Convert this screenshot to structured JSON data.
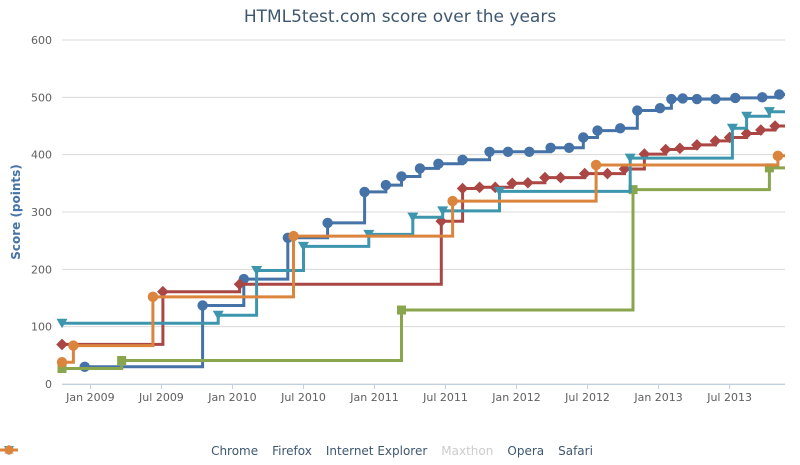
{
  "chart": {
    "title": "HTML5test.com score over the years",
    "y_axis_title": "Score (points)"
  },
  "chart_data": {
    "type": "line",
    "step": "after",
    "title": "HTML5test.com score over the years",
    "xlabel": "",
    "ylabel": "Score (points)",
    "x_range": [
      2008.8,
      2013.89
    ],
    "y_range": [
      0,
      600
    ],
    "grid": true,
    "legend_position": "bottom",
    "axis_colors": {
      "grid": "#D8D8D8",
      "axis_line": "#C0D0E0",
      "tick_text": "#606060"
    },
    "x_ticks": [
      {
        "label": "Jan 2009",
        "year": 2009.0
      },
      {
        "label": "Jul 2009",
        "year": 2009.5
      },
      {
        "label": "Jan 2010",
        "year": 2010.0
      },
      {
        "label": "Jul 2010",
        "year": 2010.5
      },
      {
        "label": "Jan 2011",
        "year": 2011.0
      },
      {
        "label": "Jul 2011",
        "year": 2011.5
      },
      {
        "label": "Jan 2012",
        "year": 2012.0
      },
      {
        "label": "Jul 2012",
        "year": 2012.5
      },
      {
        "label": "Jan 2013",
        "year": 2013.0
      },
      {
        "label": "Jul 2013",
        "year": 2013.5
      }
    ],
    "y_ticks": [
      {
        "label": "0",
        "value": 0
      },
      {
        "label": "100",
        "value": 100
      },
      {
        "label": "200",
        "value": 200
      },
      {
        "label": "300",
        "value": 300
      },
      {
        "label": "400",
        "value": 400
      },
      {
        "label": "500",
        "value": 500
      },
      {
        "label": "600",
        "value": 600
      }
    ],
    "series": [
      {
        "id": "chrome",
        "name": "Chrome",
        "color": "#4572A7",
        "marker": "circle",
        "visible": true,
        "points": [
          [
            2008.96,
            30
          ],
          [
            2009.79,
            137
          ],
          [
            2010.08,
            183
          ],
          [
            2010.39,
            255
          ],
          [
            2010.67,
            281
          ],
          [
            2010.93,
            335
          ],
          [
            2011.08,
            347
          ],
          [
            2011.19,
            362
          ],
          [
            2011.32,
            376
          ],
          [
            2011.45,
            384
          ],
          [
            2011.62,
            391
          ],
          [
            2011.81,
            405
          ],
          [
            2011.94,
            405
          ],
          [
            2012.09,
            405
          ],
          [
            2012.24,
            412
          ],
          [
            2012.37,
            412
          ],
          [
            2012.47,
            430
          ],
          [
            2012.57,
            442
          ],
          [
            2012.73,
            446
          ],
          [
            2012.85,
            477
          ],
          [
            2013.01,
            481
          ],
          [
            2013.09,
            497
          ],
          [
            2013.17,
            498
          ],
          [
            2013.27,
            497
          ],
          [
            2013.4,
            497
          ],
          [
            2013.54,
            499
          ],
          [
            2013.73,
            500
          ],
          [
            2013.85,
            505
          ]
        ]
      },
      {
        "id": "firefox",
        "name": "Firefox",
        "color": "#AA4643",
        "marker": "diamond",
        "visible": true,
        "points": [
          [
            2008.8,
            69
          ],
          [
            2009.51,
            161
          ],
          [
            2010.05,
            174
          ],
          [
            2011.47,
            284
          ],
          [
            2011.62,
            341
          ],
          [
            2011.74,
            343
          ],
          [
            2011.85,
            343
          ],
          [
            2011.97,
            350
          ],
          [
            2012.08,
            351
          ],
          [
            2012.2,
            360
          ],
          [
            2012.31,
            360
          ],
          [
            2012.48,
            367
          ],
          [
            2012.64,
            367
          ],
          [
            2012.76,
            375
          ],
          [
            2012.9,
            401
          ],
          [
            2013.05,
            409
          ],
          [
            2013.15,
            411
          ],
          [
            2013.27,
            417
          ],
          [
            2013.4,
            424
          ],
          [
            2013.5,
            430
          ],
          [
            2013.62,
            437
          ],
          [
            2013.72,
            443
          ],
          [
            2013.82,
            450
          ]
        ]
      },
      {
        "id": "internet-explorer",
        "name": "Internet Explorer",
        "color": "#89A54E",
        "marker": "square",
        "visible": true,
        "points": [
          [
            2008.8,
            27
          ],
          [
            2009.22,
            41
          ],
          [
            2011.19,
            129
          ],
          [
            2012.82,
            339
          ],
          [
            2013.78,
            377
          ]
        ]
      },
      {
        "id": "maxthon",
        "name": "Maxthon",
        "color": "#80699B",
        "marker": "triangle",
        "visible": false,
        "points": []
      },
      {
        "id": "opera",
        "name": "Opera",
        "color": "#3D96AE",
        "marker": "triangle-down",
        "visible": true,
        "points": [
          [
            2008.8,
            106
          ],
          [
            2009.9,
            120
          ],
          [
            2010.17,
            198
          ],
          [
            2010.5,
            240
          ],
          [
            2010.96,
            261
          ],
          [
            2011.27,
            291
          ],
          [
            2011.48,
            302
          ],
          [
            2011.88,
            336
          ],
          [
            2012.8,
            394
          ],
          [
            2013.52,
            446
          ],
          [
            2013.62,
            467
          ],
          [
            2013.78,
            475
          ]
        ]
      },
      {
        "id": "safari",
        "name": "Safari",
        "color": "#DB843D",
        "marker": "circle",
        "visible": true,
        "points": [
          [
            2008.8,
            38
          ],
          [
            2008.88,
            67
          ],
          [
            2009.44,
            152
          ],
          [
            2010.43,
            258
          ],
          [
            2011.55,
            319
          ],
          [
            2012.56,
            382
          ],
          [
            2013.84,
            398
          ]
        ]
      }
    ],
    "disabled_color": "#CCCCCC"
  }
}
